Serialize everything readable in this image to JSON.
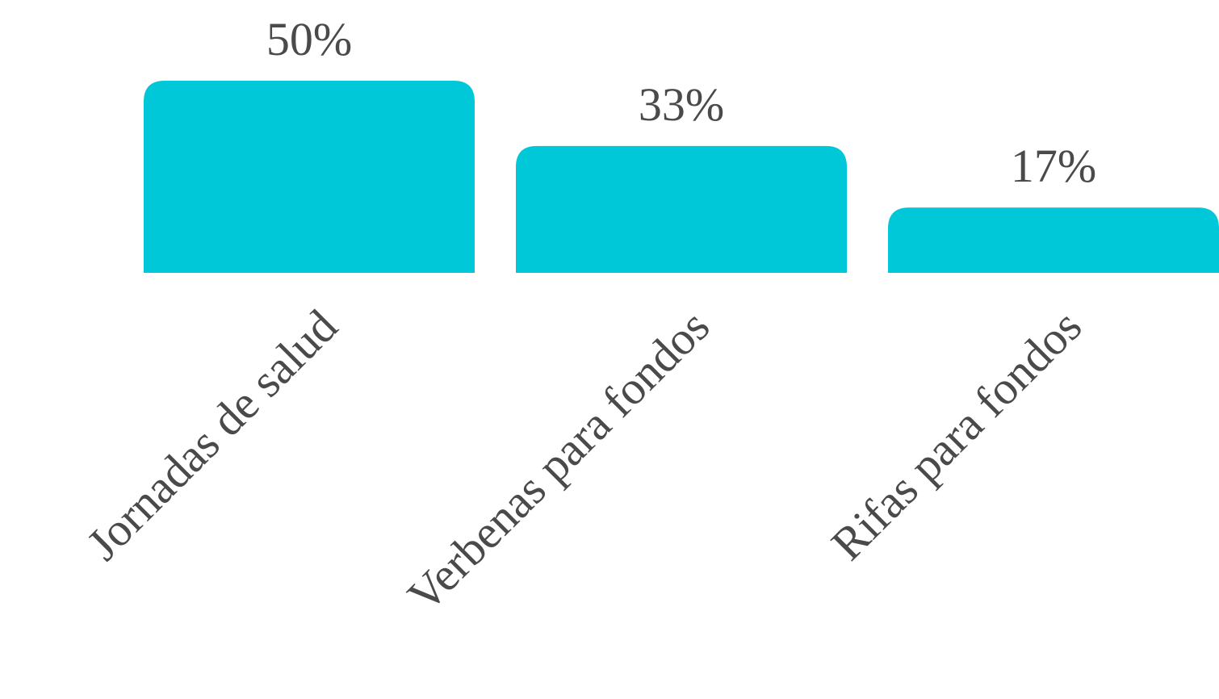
{
  "chart_data": {
    "type": "bar",
    "categories": [
      "Jornadas de salud",
      "Verbenas para fondos",
      "Rifas para fondos"
    ],
    "values": [
      50,
      33,
      17
    ],
    "value_labels": [
      "50%",
      "33%",
      "17%"
    ],
    "color": "#00c8d9"
  }
}
